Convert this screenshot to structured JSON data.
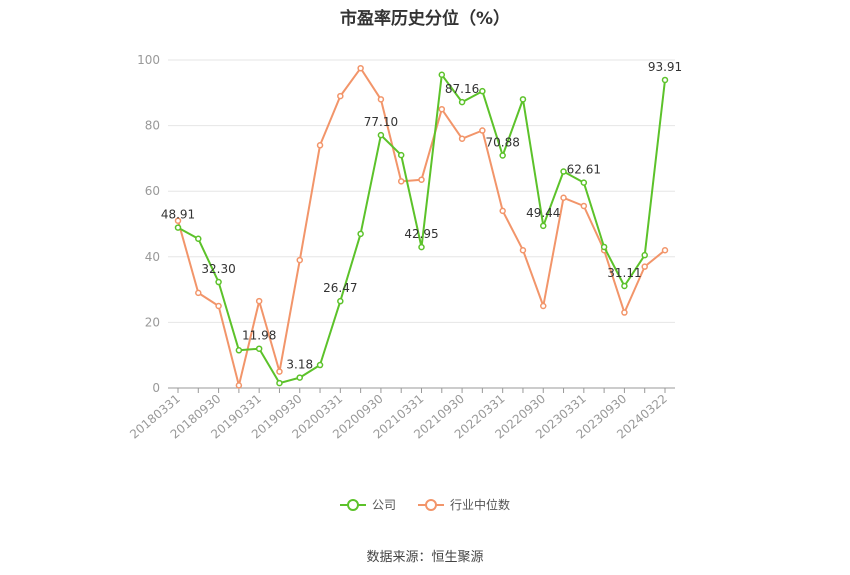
{
  "chart_data": {
    "type": "line",
    "title": "市盈率历史分位（%）",
    "categories": [
      "20180331",
      "20180630",
      "20180930",
      "20181231",
      "20190331",
      "20190630",
      "20190930",
      "20191231",
      "20200331",
      "20200630",
      "20200930",
      "20201231",
      "20210331",
      "20210630",
      "20210930",
      "20211231",
      "20220331",
      "20220630",
      "20220930",
      "20221231",
      "20230331",
      "20230630",
      "20230930",
      "20231231",
      "20240322"
    ],
    "x_tick_labels": [
      "20180331",
      "20180930",
      "20190331",
      "20190930",
      "20200331",
      "20200930",
      "20210331",
      "20210930",
      "20220331",
      "20220930",
      "20230331",
      "20230930",
      "20240322"
    ],
    "ylim": [
      0,
      100
    ],
    "y_ticks": [
      0,
      20,
      40,
      60,
      80,
      100
    ],
    "grid": true,
    "legend_position": "bottom",
    "series": [
      {
        "name": "公司",
        "color": "#5cc22a",
        "values": [
          48.91,
          45.5,
          32.3,
          11.5,
          11.98,
          1.5,
          3.18,
          7.0,
          26.47,
          47.0,
          77.1,
          71.0,
          42.95,
          95.5,
          87.16,
          90.5,
          70.88,
          88.0,
          49.44,
          66.0,
          62.61,
          43.0,
          31.11,
          40.5,
          93.91
        ],
        "labels": {
          "0": "48.91",
          "2": "32.30",
          "4": "11.98",
          "6": "3.18",
          "8": "26.47",
          "10": "77.10",
          "12": "42.95",
          "14": "87.16",
          "16": "70.88",
          "18": "49.44",
          "20": "62.61",
          "22": "31.11",
          "24": "93.91"
        }
      },
      {
        "name": "行业中位数",
        "color": "#f2956a",
        "values": [
          51.0,
          29.0,
          25.0,
          0.8,
          26.5,
          5.0,
          39.0,
          74.0,
          89.0,
          97.5,
          88.0,
          63.0,
          63.5,
          85.0,
          76.0,
          78.5,
          54.0,
          42.0,
          25.0,
          58.0,
          55.5,
          42.0,
          23.0,
          37.0,
          42.0
        ]
      }
    ]
  },
  "source_text": "数据来源：恒生聚源",
  "colors": {
    "company": "#5cc22a",
    "industry": "#f2956a",
    "grid": "#e6e6e6",
    "axis": "#999999",
    "tick_text": "#999999",
    "label_text": "#333333"
  }
}
